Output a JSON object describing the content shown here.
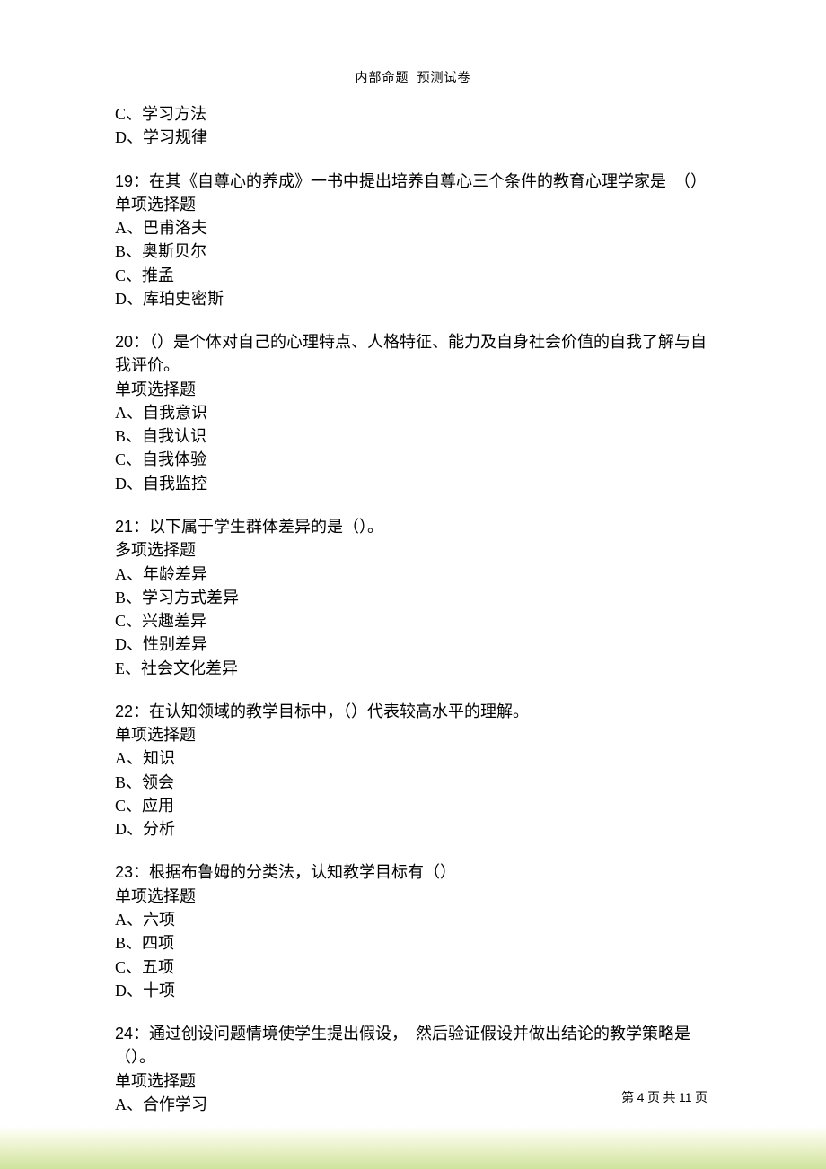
{
  "header": {
    "left": "内部命题",
    "right": "预测试卷"
  },
  "footer": {
    "prefix": "第 ",
    "page": "4",
    "mid": " 页 共 ",
    "total": "11",
    "suffix": " 页"
  },
  "stub_options": {
    "C": "C、学习方法",
    "D": "D、学习规律"
  },
  "questions": [
    {
      "num": "19",
      "stem": "：在其《自尊心的养成》一书中提出培养自尊心三个条件的教育心理学家是　（）",
      "type": "单项选择题",
      "options": {
        "A": "A、巴甫洛夫",
        "B": "B、奥斯贝尔",
        "C": "C、推孟",
        "D": "D、库珀史密斯"
      }
    },
    {
      "num": "20",
      "stem": "：（）是个体对自己的心理特点、人格特征、能力及自身社会价值的自我了解与自我评价。",
      "type": "单项选择题",
      "options": {
        "A": "A、自我意识",
        "B": "B、自我认识",
        "C": "C、自我体验",
        "D": "D、自我监控"
      }
    },
    {
      "num": "21",
      "stem": "：以下属于学生群体差异的是（）。",
      "type": "多项选择题",
      "options": {
        "A": "A、年龄差异",
        "B": "B、学习方式差异",
        "C": "C、兴趣差异",
        "D": "D、性别差异",
        "E": "E、社会文化差异"
      }
    },
    {
      "num": "22",
      "stem": "：在认知领域的教学目标中，（）代表较高水平的理解。",
      "type": "单项选择题",
      "options": {
        "A": "A、知识",
        "B": "B、领会",
        "C": "C、应用",
        "D": "D、分析"
      }
    },
    {
      "num": "23",
      "stem": "：根据布鲁姆的分类法，认知教学目标有（）",
      "type": "单项选择题",
      "options": {
        "A": "A、六项",
        "B": "B、四项",
        "C": "C、五项",
        "D": "D、十项"
      }
    },
    {
      "num": "24",
      "stem": "：通过创设问题情境使学生提出假设，　然后验证假设并做出结论的教学策略是（）。",
      "type": "单项选择题",
      "options": {
        "A": "A、合作学习"
      }
    }
  ]
}
